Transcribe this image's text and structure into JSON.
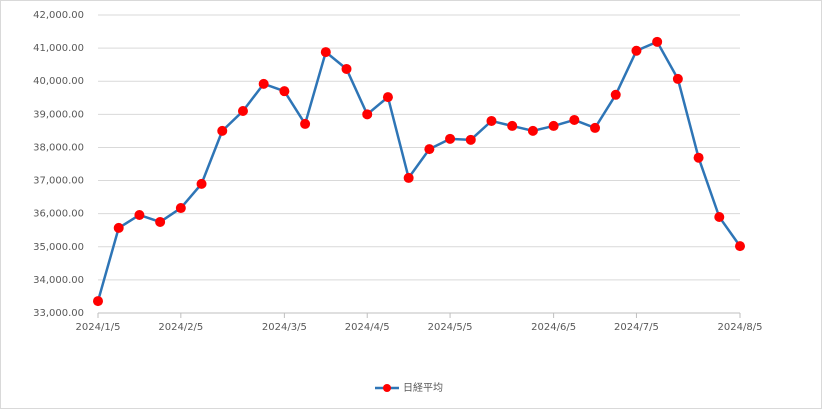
{
  "chart_data": {
    "type": "line",
    "categories": [
      "2024/1/5",
      null,
      null,
      null,
      "2024/2/5",
      null,
      null,
      null,
      null,
      "2024/3/5",
      null,
      null,
      null,
      "2024/4/5",
      null,
      null,
      null,
      "2024/5/5",
      null,
      null,
      null,
      null,
      "2024/6/5",
      null,
      null,
      null,
      "2024/7/5",
      null,
      null,
      null,
      null,
      "2024/8/5"
    ],
    "series": [
      {
        "name": "日経平均",
        "color": "#2e75b6",
        "marker_color": "#ff0000",
        "values": [
          33360,
          35570,
          35960,
          35750,
          36170,
          36900,
          38500,
          39100,
          39920,
          39700,
          38710,
          40880,
          40370,
          39000,
          39520,
          37080,
          37950,
          38260,
          38230,
          38800,
          38650,
          38500,
          38650,
          38830,
          38590,
          39590,
          40920,
          41190,
          40070,
          37690,
          35900,
          35020
        ]
      }
    ],
    "ylim": [
      33000,
      42000
    ],
    "yticks": [
      {
        "value": 33000,
        "label": "33,000.00"
      },
      {
        "value": 34000,
        "label": "34,000.00"
      },
      {
        "value": 35000,
        "label": "35,000.00"
      },
      {
        "value": 36000,
        "label": "36,000.00"
      },
      {
        "value": 37000,
        "label": "37,000.00"
      },
      {
        "value": 38000,
        "label": "38,000.00"
      },
      {
        "value": 39000,
        "label": "39,000.00"
      },
      {
        "value": 40000,
        "label": "40,000.00"
      },
      {
        "value": 41000,
        "label": "41,000.00"
      },
      {
        "value": 42000,
        "label": "42,000.00"
      }
    ],
    "grid": true,
    "legend": "bottom"
  }
}
